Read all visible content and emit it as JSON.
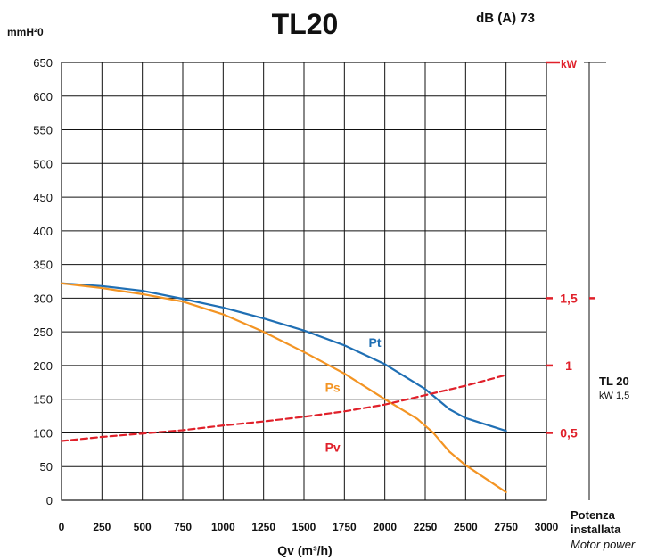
{
  "chart_data": {
    "type": "line",
    "title": "TL20",
    "noise_label": "dB (A) 73",
    "ylabel": "mmH²0",
    "xlabel": "Qv (m³/h)",
    "y2label": "kW",
    "xlim": [
      0,
      3000
    ],
    "ylim": [
      0,
      650
    ],
    "y2lim": [
      0,
      3.25
    ],
    "x_ticks": [
      "0",
      "250",
      "500",
      "750",
      "1000",
      "1250",
      "1500",
      "1750",
      "2000",
      "2250",
      "2500",
      "2750",
      "3000"
    ],
    "y_ticks": [
      "0",
      "50",
      "100",
      "150",
      "200",
      "250",
      "300",
      "350",
      "400",
      "450",
      "500",
      "550",
      "600",
      "650"
    ],
    "y2_ticks": [
      {
        "value": 0.5,
        "label": "0,5"
      },
      {
        "value": 1,
        "label": "1"
      },
      {
        "value": 1.5,
        "label": "1,5"
      }
    ],
    "grid": true,
    "series": [
      {
        "name": "Pt",
        "axis": "left",
        "color": "#1f6fb4",
        "dashed": false,
        "label_at": [
          1900,
          228
        ],
        "points": [
          [
            0,
            322
          ],
          [
            250,
            318
          ],
          [
            500,
            311
          ],
          [
            750,
            299
          ],
          [
            1000,
            286
          ],
          [
            1250,
            270
          ],
          [
            1500,
            252
          ],
          [
            1750,
            230
          ],
          [
            2000,
            202
          ],
          [
            2250,
            165
          ],
          [
            2400,
            135
          ],
          [
            2500,
            122
          ],
          [
            2750,
            103
          ]
        ]
      },
      {
        "name": "Ps",
        "axis": "left",
        "color": "#f39423",
        "dashed": false,
        "label_at": [
          1630,
          161
        ],
        "points": [
          [
            0,
            322
          ],
          [
            250,
            315
          ],
          [
            500,
            306
          ],
          [
            750,
            295
          ],
          [
            1000,
            276
          ],
          [
            1250,
            250
          ],
          [
            1500,
            220
          ],
          [
            1750,
            188
          ],
          [
            2000,
            150
          ],
          [
            2200,
            121
          ],
          [
            2300,
            100
          ],
          [
            2400,
            72
          ],
          [
            2500,
            52
          ],
          [
            2750,
            12
          ]
        ]
      },
      {
        "name": "Pv",
        "axis": "right",
        "color": "#e0202a",
        "dashed": true,
        "label_at": [
          1630,
          72
        ],
        "points": [
          [
            0,
            0.44
          ],
          [
            250,
            0.47
          ],
          [
            500,
            0.495
          ],
          [
            750,
            0.52
          ],
          [
            1000,
            0.555
          ],
          [
            1250,
            0.585
          ],
          [
            1500,
            0.62
          ],
          [
            1750,
            0.66
          ],
          [
            2000,
            0.71
          ],
          [
            2250,
            0.78
          ],
          [
            2500,
            0.85
          ],
          [
            2750,
            0.93
          ]
        ]
      }
    ],
    "side_model": "TL 20",
    "side_power": "kW 1,5",
    "side_power_value": 1.5,
    "footer_label": "Potenza installata",
    "footer_sublabel": "Motor power"
  },
  "colors": {
    "grid": "#111111",
    "accent_red": "#e0202a"
  }
}
